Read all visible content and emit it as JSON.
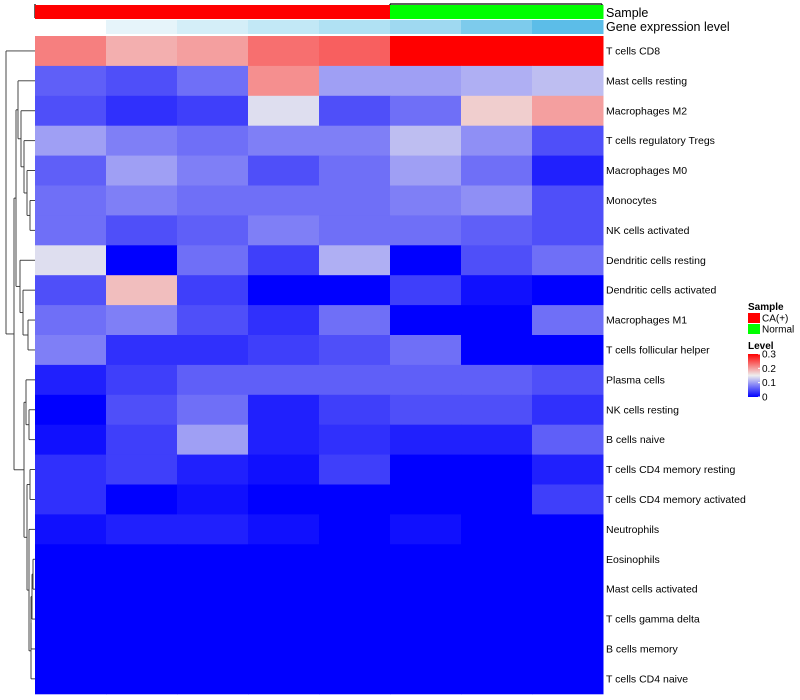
{
  "chart_data": {
    "type": "heatmap",
    "n_columns": 8,
    "rows": [
      {
        "label": "T cells CD8",
        "values": [
          0.22,
          0.19,
          0.2,
          0.23,
          0.24,
          0.3,
          0.3,
          0.3
        ]
      },
      {
        "label": "Mast cells resting",
        "values": [
          0.06,
          0.05,
          0.07,
          0.21,
          0.1,
          0.1,
          0.11,
          0.12
        ]
      },
      {
        "label": "Macrophages M2",
        "values": [
          0.05,
          0.03,
          0.04,
          0.14,
          0.05,
          0.07,
          0.17,
          0.2
        ]
      },
      {
        "label": "T cells regulatory  Tregs",
        "values": [
          0.1,
          0.08,
          0.07,
          0.08,
          0.08,
          0.12,
          0.09,
          0.05
        ]
      },
      {
        "label": "Macrophages M0",
        "values": [
          0.06,
          0.1,
          0.08,
          0.05,
          0.07,
          0.1,
          0.07,
          0.02
        ]
      },
      {
        "label": "Monocytes",
        "values": [
          0.07,
          0.08,
          0.07,
          0.07,
          0.07,
          0.08,
          0.09,
          0.05
        ]
      },
      {
        "label": "NK cells activated",
        "values": [
          0.07,
          0.05,
          0.06,
          0.08,
          0.07,
          0.07,
          0.06,
          0.05
        ]
      },
      {
        "label": "Dendritic cells resting",
        "values": [
          0.14,
          0.0,
          0.07,
          0.04,
          0.11,
          0.0,
          0.05,
          0.07
        ]
      },
      {
        "label": "Dendritic cells activated",
        "values": [
          0.05,
          0.18,
          0.04,
          0.0,
          0.0,
          0.04,
          0.01,
          0.0
        ]
      },
      {
        "label": "Macrophages M1",
        "values": [
          0.07,
          0.08,
          0.05,
          0.03,
          0.07,
          0.0,
          0.0,
          0.07
        ]
      },
      {
        "label": "T cells follicular helper",
        "values": [
          0.08,
          0.03,
          0.03,
          0.04,
          0.05,
          0.07,
          0.0,
          0.0
        ]
      },
      {
        "label": "Plasma cells",
        "values": [
          0.02,
          0.04,
          0.06,
          0.06,
          0.06,
          0.06,
          0.06,
          0.05
        ]
      },
      {
        "label": "NK cells resting",
        "values": [
          0.0,
          0.05,
          0.07,
          0.02,
          0.04,
          0.05,
          0.05,
          0.03
        ]
      },
      {
        "label": "B cells naive",
        "values": [
          0.01,
          0.04,
          0.1,
          0.02,
          0.03,
          0.02,
          0.02,
          0.06
        ]
      },
      {
        "label": "T cells CD4 memory resting",
        "values": [
          0.03,
          0.04,
          0.02,
          0.01,
          0.04,
          0.0,
          0.0,
          0.02
        ]
      },
      {
        "label": "T cells CD4 memory activated",
        "values": [
          0.03,
          0.0,
          0.01,
          0.0,
          0.0,
          0.0,
          0.0,
          0.04
        ]
      },
      {
        "label": "Neutrophils",
        "values": [
          0.01,
          0.02,
          0.02,
          0.01,
          0.0,
          0.01,
          0.0,
          0.0
        ]
      },
      {
        "label": "Eosinophils",
        "values": [
          0,
          0,
          0,
          0,
          0,
          0,
          0,
          0
        ]
      },
      {
        "label": "Mast cells activated",
        "values": [
          0,
          0,
          0,
          0,
          0,
          0,
          0,
          0
        ]
      },
      {
        "label": "T cells gamma delta",
        "values": [
          0,
          0,
          0,
          0,
          0,
          0,
          0,
          0
        ]
      },
      {
        "label": "B cells memory",
        "values": [
          0,
          0,
          0,
          0,
          0,
          0,
          0,
          0
        ]
      },
      {
        "label": "T cells CD4 naive",
        "values": [
          0,
          0,
          0,
          0,
          0,
          0,
          0,
          0
        ]
      }
    ],
    "annotations": {
      "sample": {
        "label": "Sample",
        "values": [
          "CA(+)",
          "CA(+)",
          "CA(+)",
          "CA(+)",
          "CA(+)",
          "Normal",
          "Normal",
          "Normal"
        ]
      },
      "gene_expression": {
        "label": "Gene expression level",
        "colors": [
          "#ffffff",
          "#e6f4fa",
          "#d4eef8",
          "#c2e8f6",
          "#b0e1f3",
          "#9fd9f1",
          "#7dcbec",
          "#5cbde8"
        ]
      }
    },
    "legend": {
      "sample_title": "Sample",
      "sample_items": [
        {
          "label": "CA(+)",
          "color": "#ff0000"
        },
        {
          "label": "Normal",
          "color": "#00ff00"
        }
      ],
      "level_title": "Level",
      "level_ticks": [
        {
          "label": "0.3",
          "value": 0.3
        },
        {
          "label": "0.2",
          "value": 0.2
        },
        {
          "label": "0.1",
          "value": 0.1
        },
        {
          "label": "0",
          "value": 0
        }
      ]
    },
    "color_scale": {
      "min": 0,
      "mid": 0.15,
      "max": 0.3,
      "low_color": "#0000ff",
      "mid_color": "#eeeeee",
      "high_color": "#ff0000"
    }
  }
}
